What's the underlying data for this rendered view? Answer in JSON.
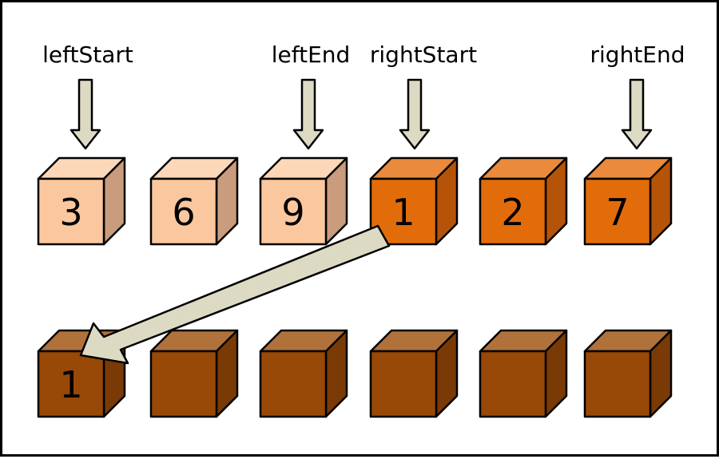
{
  "pointers": [
    {
      "key": "leftStart",
      "label": "leftStart"
    },
    {
      "key": "leftEnd",
      "label": "leftEnd"
    },
    {
      "key": "rightStart",
      "label": "rightStart"
    },
    {
      "key": "rightEnd",
      "label": "rightEnd"
    }
  ],
  "top_row": [
    {
      "value": "3",
      "group": "left"
    },
    {
      "value": "6",
      "group": "left"
    },
    {
      "value": "9",
      "group": "left"
    },
    {
      "value": "1",
      "group": "right"
    },
    {
      "value": "2",
      "group": "right"
    },
    {
      "value": "7",
      "group": "right"
    }
  ],
  "bottom_row": [
    "1",
    "",
    "",
    "",
    "",
    ""
  ],
  "copy_arrow": {
    "from": "top_row.3",
    "to": "bottom_row.0"
  },
  "colors": {
    "left_front": "#fbc79e",
    "left_top": "#fdd8b8",
    "left_side": "#c99c7d",
    "right_front": "#e36c0a",
    "right_top": "#ea8a3c",
    "right_side": "#b55408",
    "result_front": "#984807",
    "result_top": "#b0713b",
    "result_side": "#7a3a06",
    "arrow_fill": "#dddac4"
  }
}
